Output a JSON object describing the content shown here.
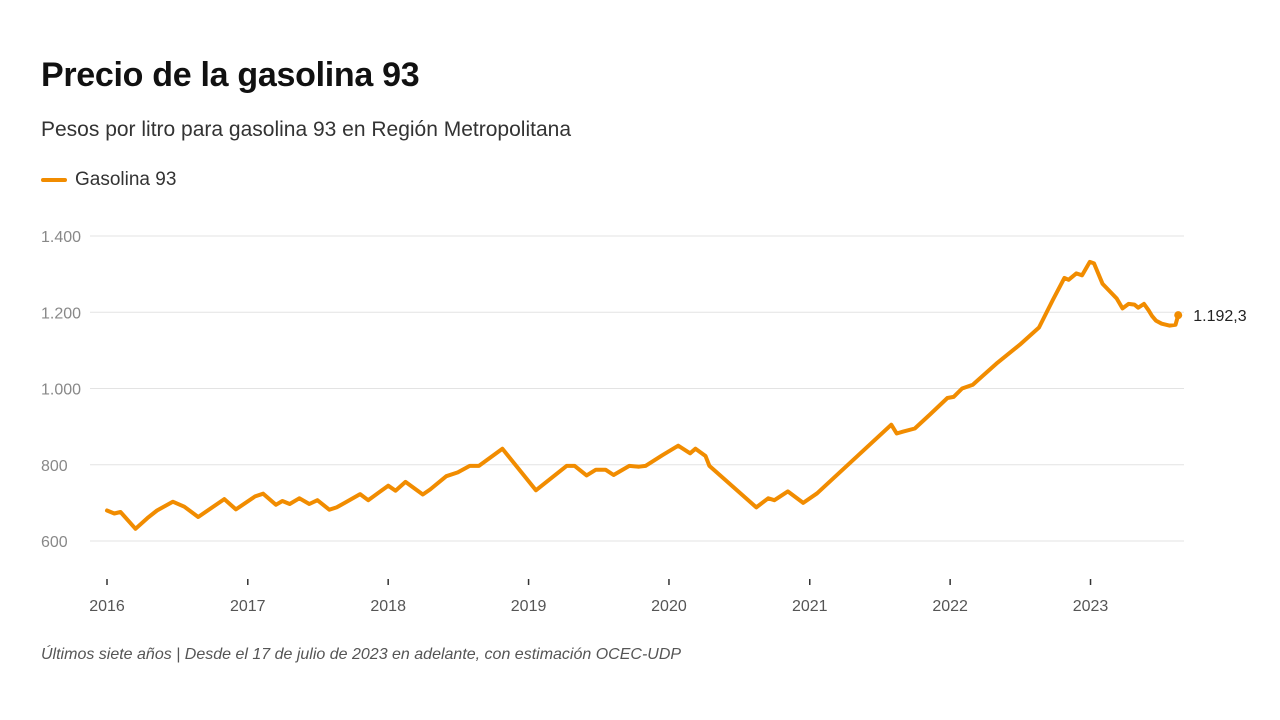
{
  "title": "Precio de la gasolina 93",
  "subtitle": "Pesos por litro para gasolina 93 en Región Metropolitana",
  "footnote": "Últimos siete años | Desde el 17 de julio de 2023 en adelante, con estimación OCEC-UDP",
  "colors": {
    "series": "#F18C00",
    "grid": "#e3e3e3",
    "axis": "#333333"
  },
  "chart_data": {
    "type": "line",
    "ylim": [
      500,
      1400
    ],
    "yticks": [
      {
        "value": 1400,
        "label": "1.400"
      },
      {
        "value": 1200,
        "label": "1.200"
      },
      {
        "value": 1000,
        "label": "1.000"
      },
      {
        "value": 800,
        "label": "800"
      },
      {
        "value": 600,
        "label": "600"
      }
    ],
    "xlim": [
      "2016-01-01",
      "2023-09-01"
    ],
    "xticks": [
      {
        "value": "2016-01-01",
        "label": "2016"
      },
      {
        "value": "2017-01-01",
        "label": "2017"
      },
      {
        "value": "2018-01-01",
        "label": "2018"
      },
      {
        "value": "2019-01-01",
        "label": "2019"
      },
      {
        "value": "2020-01-01",
        "label": "2020"
      },
      {
        "value": "2021-01-01",
        "label": "2021"
      },
      {
        "value": "2022-01-01",
        "label": "2022"
      },
      {
        "value": "2023-01-01",
        "label": "2023"
      }
    ],
    "grid": true,
    "legend": "top-left",
    "series": [
      {
        "name": "Gasolina 93",
        "last_label": "1.192,3",
        "points": [
          [
            "2016-01-01",
            680
          ],
          [
            "2016-01-20",
            672
          ],
          [
            "2016-02-05",
            676
          ],
          [
            "2016-03-15",
            632
          ],
          [
            "2016-04-15",
            660
          ],
          [
            "2016-05-10",
            680
          ],
          [
            "2016-06-20",
            703
          ],
          [
            "2016-07-20",
            690
          ],
          [
            "2016-08-25",
            663
          ],
          [
            "2016-11-01",
            710
          ],
          [
            "2016-12-01",
            683
          ],
          [
            "2017-01-20",
            717
          ],
          [
            "2017-02-10",
            724
          ],
          [
            "2017-03-15",
            695
          ],
          [
            "2017-04-01",
            705
          ],
          [
            "2017-04-20",
            697
          ],
          [
            "2017-05-15",
            712
          ],
          [
            "2017-06-10",
            697
          ],
          [
            "2017-07-01",
            707
          ],
          [
            "2017-08-01",
            682
          ],
          [
            "2017-08-20",
            688
          ],
          [
            "2017-09-10",
            700
          ],
          [
            "2017-10-20",
            723
          ],
          [
            "2017-11-10",
            707
          ],
          [
            "2018-01-01",
            745
          ],
          [
            "2018-01-20",
            732
          ],
          [
            "2018-02-15",
            755
          ],
          [
            "2018-04-01",
            722
          ],
          [
            "2018-04-20",
            735
          ],
          [
            "2018-06-01",
            770
          ],
          [
            "2018-07-01",
            780
          ],
          [
            "2018-08-01",
            797
          ],
          [
            "2018-08-25",
            797
          ],
          [
            "2018-10-25",
            842
          ],
          [
            "2019-01-20",
            733
          ],
          [
            "2019-04-10",
            797
          ],
          [
            "2019-05-01",
            797
          ],
          [
            "2019-06-01",
            772
          ],
          [
            "2019-06-25",
            787
          ],
          [
            "2019-07-20",
            787
          ],
          [
            "2019-08-10",
            773
          ],
          [
            "2019-09-20",
            797
          ],
          [
            "2019-10-15",
            795
          ],
          [
            "2019-11-01",
            797
          ],
          [
            "2019-12-15",
            825
          ],
          [
            "2020-01-25",
            850
          ],
          [
            "2020-02-25",
            830
          ],
          [
            "2020-03-10",
            842
          ],
          [
            "2020-04-05",
            823
          ],
          [
            "2020-04-15",
            797
          ],
          [
            "2020-08-15",
            688
          ],
          [
            "2020-09-15",
            712
          ],
          [
            "2020-10-01",
            707
          ],
          [
            "2020-11-05",
            730
          ],
          [
            "2020-12-15",
            700
          ],
          [
            "2021-01-20",
            725
          ],
          [
            "2021-08-01",
            905
          ],
          [
            "2021-08-15",
            882
          ],
          [
            "2021-09-01",
            887
          ],
          [
            "2021-10-01",
            895
          ],
          [
            "2021-11-10",
            932
          ],
          [
            "2021-12-25",
            975
          ],
          [
            "2022-01-10",
            978
          ],
          [
            "2022-02-01",
            1000
          ],
          [
            "2022-03-01",
            1010
          ],
          [
            "2022-05-01",
            1065
          ],
          [
            "2022-07-01",
            1115
          ],
          [
            "2022-08-20",
            1160
          ],
          [
            "2022-09-25",
            1232
          ],
          [
            "2022-10-25",
            1290
          ],
          [
            "2022-11-05",
            1285
          ],
          [
            "2022-11-25",
            1302
          ],
          [
            "2022-12-10",
            1297
          ],
          [
            "2022-12-30",
            1332
          ],
          [
            "2023-01-10",
            1328
          ],
          [
            "2023-02-01",
            1275
          ],
          [
            "2023-03-10",
            1236
          ],
          [
            "2023-03-25",
            1210
          ],
          [
            "2023-04-10",
            1222
          ],
          [
            "2023-04-25",
            1220
          ],
          [
            "2023-05-05",
            1212
          ],
          [
            "2023-05-20",
            1222
          ],
          [
            "2023-06-01",
            1205
          ],
          [
            "2023-06-10",
            1190
          ],
          [
            "2023-06-20",
            1178
          ],
          [
            "2023-07-05",
            1170
          ],
          [
            "2023-07-25",
            1165
          ],
          [
            "2023-08-10",
            1167
          ],
          [
            "2023-08-17",
            1192.3
          ]
        ]
      }
    ]
  }
}
